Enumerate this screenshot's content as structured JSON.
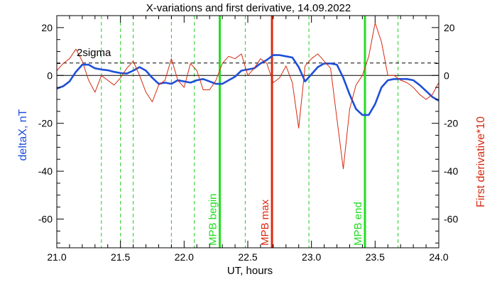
{
  "chart_data": {
    "type": "line",
    "title": "X-variations and first derivative, 14.09.2022",
    "xlabel": "UT, hours",
    "ylabel_left": "deltaX, nT",
    "ylabel_right": "First derivative*10",
    "xlim": [
      21.0,
      24.0
    ],
    "ylim": [
      -72,
      25
    ],
    "x_ticks": [
      21.0,
      21.5,
      22.0,
      22.5,
      23.0,
      23.5,
      24.0
    ],
    "x_tick_labels": [
      "21.0",
      "21.5",
      "22.0",
      "22.5",
      "23.0",
      "23.5",
      "24.0"
    ],
    "y_ticks": [
      20,
      0,
      -20,
      -40,
      -60
    ],
    "y_tick_labels": [
      "20",
      "0",
      "-20",
      "-40",
      "-60"
    ],
    "sigma_level": 5.2,
    "sigma_label": "2sigma",
    "zero_line": 0,
    "colors": {
      "deltaX": "#1e4fd8",
      "derivative": "#d42a10",
      "mpb_begin_end": "#22dd22",
      "mpb_max": "#dd2a10",
      "grid_dashed": "#22cc22"
    },
    "dashed_verticals": [
      21.35,
      21.5,
      21.6,
      21.9,
      22.08,
      22.48,
      22.98,
      23.68
    ],
    "markers": [
      {
        "x": 22.28,
        "label": "MPB begin",
        "color": "#22dd22"
      },
      {
        "x": 22.69,
        "label": "MPB max",
        "color": "#dd2a10"
      },
      {
        "x": 23.42,
        "label": "MPB end",
        "color": "#22dd22"
      }
    ],
    "series": [
      {
        "name": "deltaX, nT",
        "color": "#1e4fd8",
        "x": [
          21.0,
          21.05,
          21.1,
          21.15,
          21.2,
          21.25,
          21.3,
          21.35,
          21.4,
          21.45,
          21.5,
          21.55,
          21.6,
          21.65,
          21.7,
          21.75,
          21.8,
          21.85,
          21.9,
          21.95,
          22.0,
          22.05,
          22.1,
          22.15,
          22.2,
          22.25,
          22.3,
          22.35,
          22.4,
          22.45,
          22.5,
          22.55,
          22.6,
          22.65,
          22.7,
          22.75,
          22.8,
          22.85,
          22.9,
          22.95,
          23.0,
          23.05,
          23.1,
          23.15,
          23.2,
          23.25,
          23.3,
          23.35,
          23.4,
          23.45,
          23.5,
          23.55,
          23.6,
          23.65,
          23.7,
          23.75,
          23.8,
          23.85,
          23.9,
          23.95,
          24.0
        ],
        "values": [
          -5.5,
          -4.5,
          -2.5,
          1.5,
          4.5,
          4.5,
          3.0,
          2.5,
          2.2,
          1.5,
          1.0,
          0.8,
          2.0,
          3.5,
          2.0,
          -1.0,
          -3.5,
          -3.0,
          -3.5,
          -2.0,
          -2.5,
          -3.0,
          -2.0,
          -1.5,
          -2.5,
          -3.5,
          -3.5,
          -2.0,
          -0.5,
          2.0,
          2.5,
          3.0,
          5.0,
          6.5,
          8.5,
          8.5,
          8.0,
          7.5,
          3.5,
          -2.5,
          0.5,
          3.5,
          5.0,
          5.0,
          4.5,
          -1.0,
          -8.0,
          -14.0,
          -16.5,
          -16.5,
          -12.0,
          -5.0,
          -2.0,
          -1.5,
          -1.5,
          -1.5,
          -2.0,
          -4.0,
          -6.5,
          -9.0,
          -10.5
        ]
      },
      {
        "name": "First derivative*10",
        "color": "#d42a10",
        "x": [
          21.0,
          21.05,
          21.1,
          21.15,
          21.2,
          21.25,
          21.3,
          21.35,
          21.4,
          21.45,
          21.5,
          21.55,
          21.6,
          21.65,
          21.7,
          21.75,
          21.8,
          21.85,
          21.9,
          21.95,
          22.0,
          22.05,
          22.1,
          22.15,
          22.2,
          22.25,
          22.3,
          22.35,
          22.4,
          22.45,
          22.5,
          22.55,
          22.6,
          22.65,
          22.7,
          22.75,
          22.8,
          22.85,
          22.9,
          22.95,
          23.0,
          23.05,
          23.1,
          23.15,
          23.2,
          23.25,
          23.3,
          23.35,
          23.4,
          23.45,
          23.5,
          23.55,
          23.6,
          23.65,
          23.7,
          23.75,
          23.8,
          23.85,
          23.9,
          23.95,
          24.0
        ],
        "values": [
          2.0,
          5.0,
          7.0,
          11.0,
          6.0,
          -2.0,
          -7.0,
          0.0,
          -2.0,
          -4.0,
          -1.0,
          3.0,
          6.0,
          0.0,
          -7.0,
          -11.0,
          -4.0,
          -2.0,
          7.0,
          -2.0,
          -5.0,
          5.0,
          2.0,
          -6.0,
          -6.0,
          -2.0,
          5.0,
          8.0,
          7.0,
          9.0,
          0.0,
          3.0,
          7.0,
          5.0,
          -3.0,
          -1.0,
          4.0,
          -3.0,
          -22.0,
          4.0,
          7.0,
          9.0,
          6.0,
          3.0,
          -18.0,
          -39.0,
          -14.0,
          -4.0,
          0.0,
          8.0,
          22.0,
          14.0,
          0.0,
          0.0,
          -2.0,
          -3.0,
          -5.0,
          -8.0,
          -10.0,
          -8.0,
          -3.0
        ]
      }
    ]
  }
}
